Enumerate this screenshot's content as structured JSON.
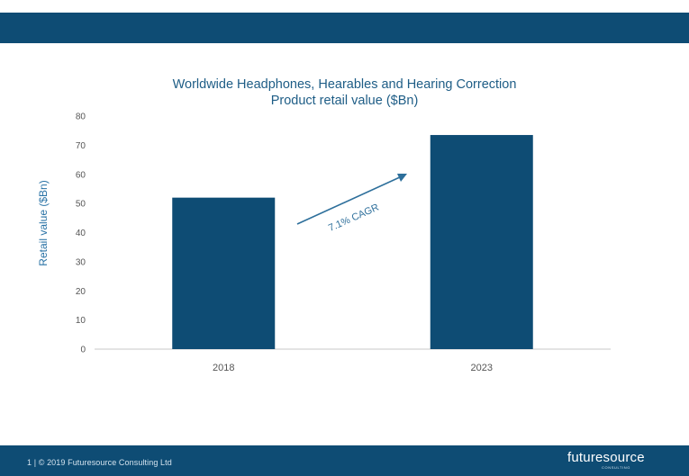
{
  "footer": {
    "text": "1 | © 2019 Futuresource Consulting Ltd",
    "logo": "futuresource",
    "logo_sub": "CONSULTING"
  },
  "colors": {
    "band": "#0e4c74",
    "bar": "#0e4c74",
    "title": "#1e5d86",
    "axis_text": "#555555",
    "arrow": "#2d6f9b"
  },
  "chart_data": {
    "type": "bar",
    "title": "Worldwide Headphones, Hearables and Hearing Correction",
    "subtitle": "Product retail value ($Bn)",
    "ylabel": "Retail value ($Bn)",
    "xlabel": "",
    "categories": [
      "2018",
      "2023"
    ],
    "values": [
      52,
      73.5
    ],
    "ylim": [
      0,
      80
    ],
    "yticks": [
      0,
      10,
      20,
      30,
      40,
      50,
      60,
      70,
      80
    ],
    "grid": false,
    "annotation": "7.1% CAGR"
  }
}
